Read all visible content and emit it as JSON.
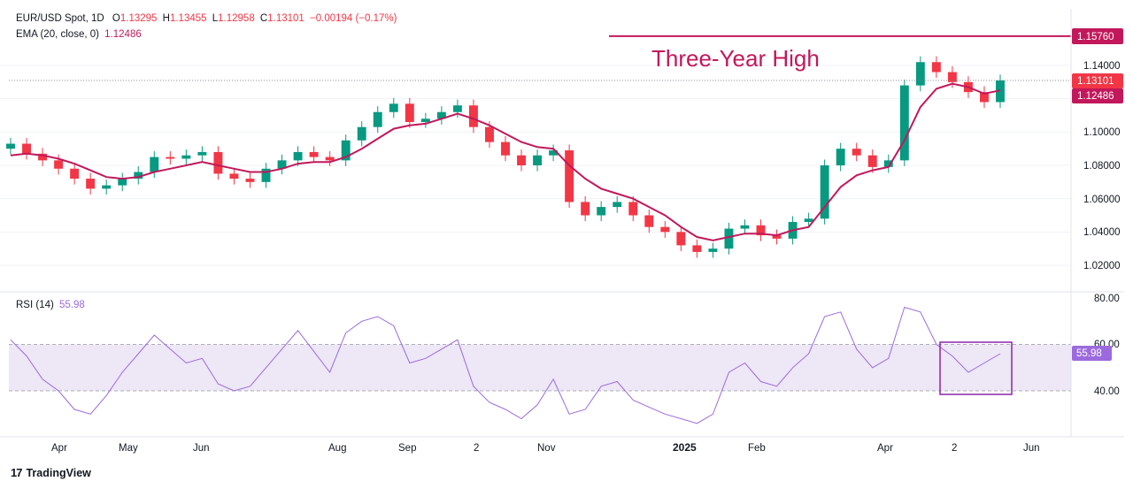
{
  "header": {
    "symbol": "EUR/USD Spot, 1D",
    "open_label": "O",
    "open": "1.13295",
    "high_label": "H",
    "high": "1.13455",
    "low_label": "L",
    "low": "1.12958",
    "close_label": "C",
    "close": "1.13101",
    "change": "−0.00194 (−0.17%)"
  },
  "ema_legend": {
    "label": "EMA (20, close, 0)",
    "value": "1.12486"
  },
  "rsi_legend": {
    "label": "RSI (14)",
    "value": "55.98"
  },
  "annotation": {
    "text": "Three-Year High",
    "level": 1.1576
  },
  "price_axis": {
    "ticks": [
      "1.14000",
      "1.10000",
      "1.08000",
      "1.06000",
      "1.04000",
      "1.02000"
    ],
    "last_price_label": "1.13101",
    "ema_label": "1.12486",
    "high_label": "1.15760"
  },
  "rsi_axis": {
    "ticks": [
      "80.00",
      "60.00",
      "40.00"
    ],
    "value_label": "55.98"
  },
  "time_axis": {
    "labels": [
      "Apr",
      "May",
      "Jun",
      "Aug",
      "Sep",
      "2",
      "Nov",
      "2025",
      "Feb",
      "Apr",
      "2",
      "Jun"
    ]
  },
  "brand": {
    "name": "TradingView"
  },
  "colors": {
    "up": "#089981",
    "down": "#f23645",
    "ema": "#c2185b",
    "rsi": "#9c6ade",
    "high_line": "#c2185b",
    "rsi_band": "#ede7f6"
  },
  "chart_data": {
    "type": "line",
    "y_range": [
      1.01,
      1.165
    ],
    "rsi_range": [
      20,
      85
    ],
    "x": [
      "2024-03-13",
      "2024-03-20",
      "2024-03-27",
      "2024-04-03",
      "2024-04-10",
      "2024-04-17",
      "2024-04-24",
      "2024-05-01",
      "2024-05-08",
      "2024-05-15",
      "2024-05-22",
      "2024-05-29",
      "2024-06-05",
      "2024-06-12",
      "2024-06-19",
      "2024-06-26",
      "2024-07-03",
      "2024-07-10",
      "2024-07-17",
      "2024-07-24",
      "2024-07-31",
      "2024-08-07",
      "2024-08-14",
      "2024-08-21",
      "2024-08-28",
      "2024-09-04",
      "2024-09-11",
      "2024-09-18",
      "2024-09-25",
      "2024-10-02",
      "2024-10-09",
      "2024-10-16",
      "2024-10-23",
      "2024-10-30",
      "2024-11-06",
      "2024-11-13",
      "2024-11-20",
      "2024-11-27",
      "2024-12-04",
      "2024-12-11",
      "2024-12-18",
      "2024-12-25",
      "2025-01-01",
      "2025-01-08",
      "2025-01-15",
      "2025-01-22",
      "2025-01-29",
      "2025-02-05",
      "2025-02-12",
      "2025-02-19",
      "2025-02-26",
      "2025-03-05",
      "2025-03-12",
      "2025-03-19",
      "2025-03-26",
      "2025-04-02",
      "2025-04-09",
      "2025-04-16",
      "2025-04-23",
      "2025-04-30",
      "2025-05-07",
      "2025-05-14",
      "2025-05-21"
    ],
    "series": [
      {
        "values": [
          1.093,
          1.087,
          1.083,
          1.078,
          1.072,
          1.066,
          1.068,
          1.072,
          1.076,
          1.085,
          1.084,
          1.086,
          1.088,
          1.075,
          1.072,
          1.07,
          1.078,
          1.083,
          1.088,
          1.085,
          1.083,
          1.095,
          1.103,
          1.112,
          1.117,
          1.106,
          1.108,
          1.112,
          1.116,
          1.103,
          1.094,
          1.086,
          1.08,
          1.086,
          1.089,
          1.058,
          1.05,
          1.055,
          1.058,
          1.05,
          1.043,
          1.04,
          1.032,
          1.028,
          1.03,
          1.042,
          1.044,
          1.038,
          1.036,
          1.046,
          1.048,
          1.08,
          1.09,
          1.086,
          1.079,
          1.083,
          1.128,
          1.142,
          1.136,
          1.13,
          1.124,
          1.118,
          1.131
        ]
      },
      {
        "values": [
          1.086,
          1.087,
          1.086,
          1.084,
          1.081,
          1.077,
          1.073,
          1.072,
          1.073,
          1.076,
          1.078,
          1.08,
          1.082,
          1.08,
          1.078,
          1.076,
          1.076,
          1.078,
          1.081,
          1.082,
          1.082,
          1.085,
          1.09,
          1.096,
          1.102,
          1.104,
          1.105,
          1.108,
          1.111,
          1.108,
          1.104,
          1.099,
          1.094,
          1.091,
          1.09,
          1.08,
          1.072,
          1.066,
          1.063,
          1.06,
          1.055,
          1.05,
          1.043,
          1.037,
          1.035,
          1.037,
          1.039,
          1.039,
          1.038,
          1.041,
          1.043,
          1.055,
          1.067,
          1.074,
          1.077,
          1.079,
          1.095,
          1.115,
          1.126,
          1.129,
          1.127,
          1.123,
          1.125
        ]
      },
      {
        "values": [
          62,
          55,
          45,
          40,
          32,
          30,
          38,
          48,
          56,
          64,
          58,
          52,
          54,
          43,
          40,
          42,
          50,
          58,
          66,
          57,
          48,
          65,
          70,
          72,
          68,
          52,
          54,
          58,
          62,
          42,
          35,
          32,
          28,
          34,
          45,
          30,
          32,
          42,
          44,
          36,
          33,
          30,
          28,
          26,
          30,
          48,
          52,
          44,
          42,
          50,
          56,
          72,
          74,
          58,
          50,
          54,
          76,
          74,
          60,
          55,
          48,
          52,
          56
        ]
      }
    ]
  }
}
